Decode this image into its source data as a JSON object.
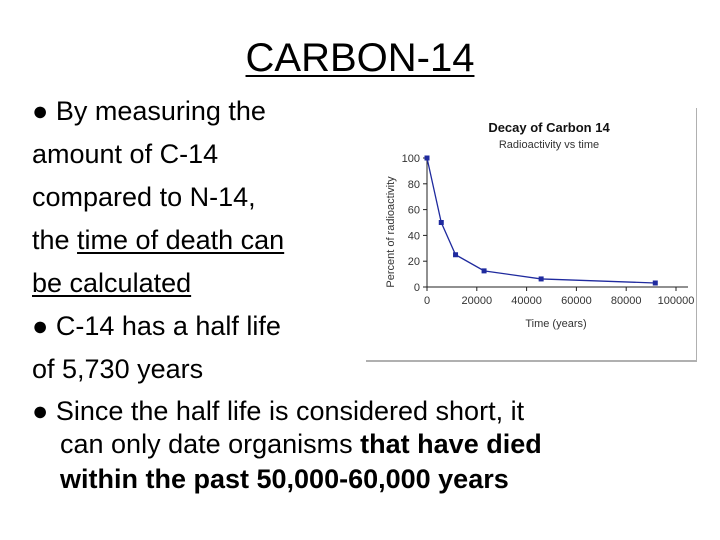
{
  "slide": {
    "title": "CARBON-14",
    "bullet_symbol": "●",
    "p1_line1": "By measuring the",
    "p1_line2": "amount of C-14",
    "p1_line3": "compared to N-14,",
    "p1_line4_pre": "the ",
    "p1_line4_u": "time of death can",
    "p1_line5_u": "be calculated",
    "p2_line1": "C-14 has a half life",
    "p2_line2": "of 5,730 years",
    "p3_line1": "Since the half life is considered short, it",
    "p3_line2_a": "can only date organisms ",
    "p3_line2_b": "that have died",
    "p3_line3": "within the past 50,000-60,000 years"
  },
  "chart_data": {
    "type": "line",
    "title": "Decay of Carbon 14",
    "subtitle": "Radioactivity vs time",
    "xlabel": "Time (years)",
    "ylabel": "Percent of radioactivity",
    "x_ticks": [
      0,
      20000,
      40000,
      60000,
      80000,
      100000
    ],
    "x_tick_labels": [
      "0",
      "20000",
      "40000",
      "60000",
      "80000",
      "100000"
    ],
    "y_ticks": [
      0,
      20,
      40,
      60,
      80,
      100
    ],
    "y_tick_labels": [
      "0",
      "20",
      "40",
      "60",
      "80",
      "100"
    ],
    "xlim": [
      0,
      100000
    ],
    "ylim": [
      0,
      100
    ],
    "grid": false,
    "series": [
      {
        "color": "#1f2a9e",
        "x": [
          0,
          5730,
          11460,
          22920,
          45840,
          91680
        ],
        "y": [
          100,
          50,
          25,
          12.5,
          6.25,
          3.1
        ]
      }
    ]
  }
}
